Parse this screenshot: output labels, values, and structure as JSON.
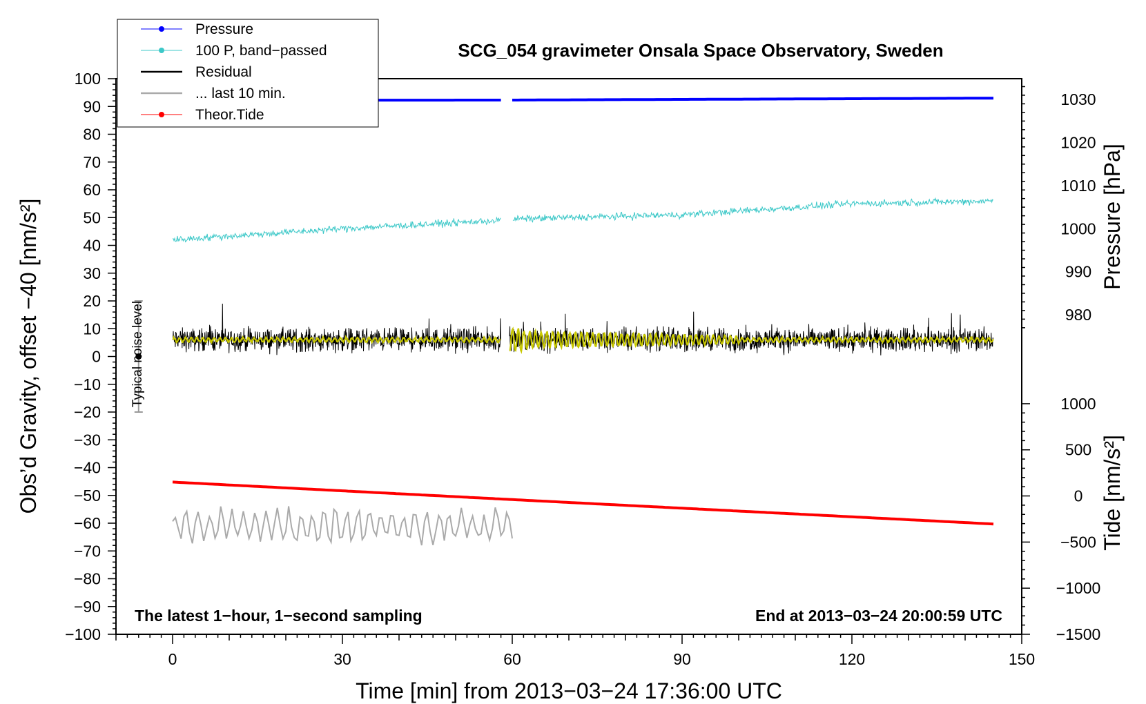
{
  "chart_data": {
    "type": "line",
    "title": "SCG_054 gravimeter Onsala Space Observatory, Sweden",
    "xlabel": "Time [min] from 2013−03−24 17:36:00 UTC",
    "ylabel_left": "Obs’d Gravity, offset −40 [nm/s²]",
    "ylabel_pressure": "Pressure [hPa]",
    "ylabel_tide": "Tide [nm/s²]",
    "xlim": [
      -10,
      150
    ],
    "ylim_left": [
      -100,
      100
    ],
    "x_ticks": [
      "0",
      "30",
      "60",
      "90",
      "120",
      "150"
    ],
    "y_ticks_left": [
      "100",
      "90",
      "80",
      "70",
      "60",
      "50",
      "40",
      "30",
      "20",
      "10",
      "0",
      "−10",
      "−20",
      "−30",
      "−40",
      "−50",
      "−60",
      "−70",
      "−80",
      "−90",
      "−100"
    ],
    "pressure_axis": {
      "ticks": [
        "1030",
        "1020",
        "1010",
        "1000",
        "990",
        "980"
      ],
      "ticks_values": [
        1030,
        1020,
        1010,
        1000,
        990,
        980
      ],
      "maps_to_left": {
        "value_a": 1030,
        "left_a": 92.5,
        "value_b": 980,
        "left_b": 15
      }
    },
    "tide_axis": {
      "ticks": [
        "1000",
        "500",
        "0",
        "−500",
        "−1000",
        "−1500"
      ],
      "ticks_values": [
        1000,
        500,
        0,
        -500,
        -1000,
        -1500
      ],
      "maps_to_left": {
        "value_a": 1000,
        "left_a": -17,
        "value_b": -1500,
        "left_b": -100
      }
    },
    "legend": [
      {
        "label": "Pressure",
        "color": "#0000ff",
        "marker": true
      },
      {
        "label": "100 P, band−passed",
        "color": "#3cc8c8",
        "marker": true
      },
      {
        "label": "Residual",
        "color": "#000000",
        "marker": false
      },
      {
        "label": "... last 10 min.",
        "color": "#aaaaaa",
        "marker": false
      },
      {
        "label": "Theor.Tide",
        "color": "#ff0000",
        "marker": true
      }
    ],
    "annotations": {
      "bottom_left": "The latest 1−hour, 1−second sampling",
      "bottom_right": "End at 2013−03−24 20:00:59 UTC",
      "noise_label": "Typical noise level",
      "noise_bar": {
        "x": -6,
        "center": 0,
        "half_range": 20
      }
    },
    "series": [
      {
        "name": "Pressure",
        "color": "#0000ff",
        "x_range": [
          0,
          145
        ],
        "gap": [
          58,
          60
        ],
        "points": [
          [
            0,
            92.2
          ],
          [
            58,
            92.3
          ],
          [
            60,
            92.3
          ],
          [
            145,
            93.0
          ]
        ]
      },
      {
        "name": "100 P, band−passed",
        "color": "#3cc8c8",
        "x_range": [
          0,
          145
        ],
        "gap": [
          58,
          60
        ],
        "trend": [
          [
            0,
            42
          ],
          [
            30,
            46
          ],
          [
            58,
            49
          ],
          [
            60,
            49.5
          ],
          [
            90,
            51
          ],
          [
            120,
            55
          ],
          [
            145,
            56
          ]
        ],
        "noise_amplitude": 1.8
      },
      {
        "name": "Residual",
        "color": "#000000",
        "x_range": [
          0,
          145
        ],
        "gap": [
          58,
          59.5
        ],
        "mean": 6,
        "range": [
          -3,
          19
        ],
        "noise_amplitude": 6
      },
      {
        "name": "Residual smoothed",
        "color": "#c8c800",
        "x_range": [
          0,
          145
        ],
        "gap": [
          58,
          59.5
        ],
        "mean": 6,
        "oscillation_amplitude": 2.5
      },
      {
        "name": "... last 10 min.",
        "color": "#aaaaaa",
        "x_range": [
          0,
          60
        ],
        "mean": -61,
        "range": [
          -72,
          -50
        ]
      },
      {
        "name": "Theor.Tide",
        "color": "#ff0000",
        "x_range": [
          0,
          145
        ],
        "gap": [
          58,
          58.5
        ],
        "points": [
          [
            0,
            -45.2
          ],
          [
            58,
            -51.3
          ],
          [
            145,
            -60.3
          ]
        ]
      }
    ]
  }
}
